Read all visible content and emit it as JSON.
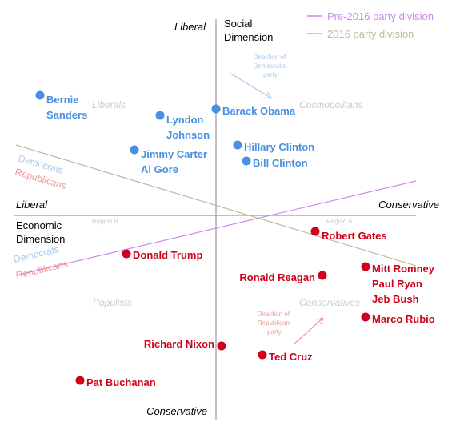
{
  "chart_data": {
    "type": "scatter",
    "title": "",
    "colors": {
      "democrat": "#4a90e2",
      "republican": "#d0021b",
      "pre2016": "#cc88ee",
      "party2016": "#b8bf9a",
      "democrats_label": "#a9c8ee",
      "republicans_label": "#ee9a9a",
      "region_label": "#cccccc",
      "axis": "#999999"
    },
    "axes": {
      "x_label": "Economic Dimension",
      "y_label": "Social Dimension",
      "x_left": "Liberal",
      "x_right": "Conservative",
      "y_top": "Liberal",
      "y_bottom": "Conservative",
      "xlim": [
        -270,
        250
      ],
      "ylim": [
        -247,
        248
      ]
    },
    "legend": {
      "placement": "top-right",
      "items": [
        {
          "label": "Pre-2016 party division",
          "color": "#cc88ee"
        },
        {
          "label": "2016 party division",
          "color": "#b8bf9a"
        }
      ]
    },
    "regions": [
      "Liberals",
      "Cosmopolitans",
      "Populists",
      "Conservatives",
      "Region A",
      "Region B"
    ],
    "direction_labels": {
      "democratic": [
        "Direction of",
        "Democratic",
        "party"
      ],
      "republican": [
        "Direction of",
        "Republican",
        "party"
      ]
    },
    "party_labels": {
      "democrats": "Democrats",
      "republicans": "Republicans"
    },
    "series": [
      {
        "name": "Democrats",
        "points": [
          {
            "label": [
              "Bernie",
              "Sanders"
            ],
            "x": -220,
            "y": 150
          },
          {
            "label": [
              "Lyndon",
              "Johnson"
            ],
            "x": -70,
            "y": 125
          },
          {
            "label": [
              "Barack Obama"
            ],
            "x": 0,
            "y": 133
          },
          {
            "label": [
              "Jimmy Carter",
              "Al Gore"
            ],
            "x": -102,
            "y": 82
          },
          {
            "label": [
              "Hillary Clinton"
            ],
            "x": 27,
            "y": 88
          },
          {
            "label": [
              "Bill Clinton"
            ],
            "x": 38,
            "y": 68
          }
        ]
      },
      {
        "name": "Republicans",
        "points": [
          {
            "label": [
              "Robert Gates"
            ],
            "x": 124,
            "y": -20
          },
          {
            "label": [
              "Donald Trump"
            ],
            "x": -112,
            "y": -48
          },
          {
            "label": [
              "Ronald Reagan"
            ],
            "x": 133,
            "y": -75
          },
          {
            "label": [
              "Mitt Romney",
              "Paul Ryan",
              "Jeb Bush"
            ],
            "x": 187,
            "y": -64
          },
          {
            "label": [
              "Marco Rubio"
            ],
            "x": 187,
            "y": -127
          },
          {
            "label": [
              "Richard Nixon"
            ],
            "x": 7,
            "y": -163
          },
          {
            "label": [
              "Ted Cruz"
            ],
            "x": 58,
            "y": -174
          },
          {
            "label": [
              "Pat Buchanan"
            ],
            "x": -170,
            "y": -206
          }
        ]
      }
    ],
    "lines": [
      {
        "name": "Pre-2016 party division",
        "x": [
          -250,
          250
        ],
        "y": [
          -75,
          43
        ]
      },
      {
        "name": "2016 party division",
        "x": [
          -250,
          250
        ],
        "y": [
          88,
          -63
        ]
      }
    ]
  }
}
